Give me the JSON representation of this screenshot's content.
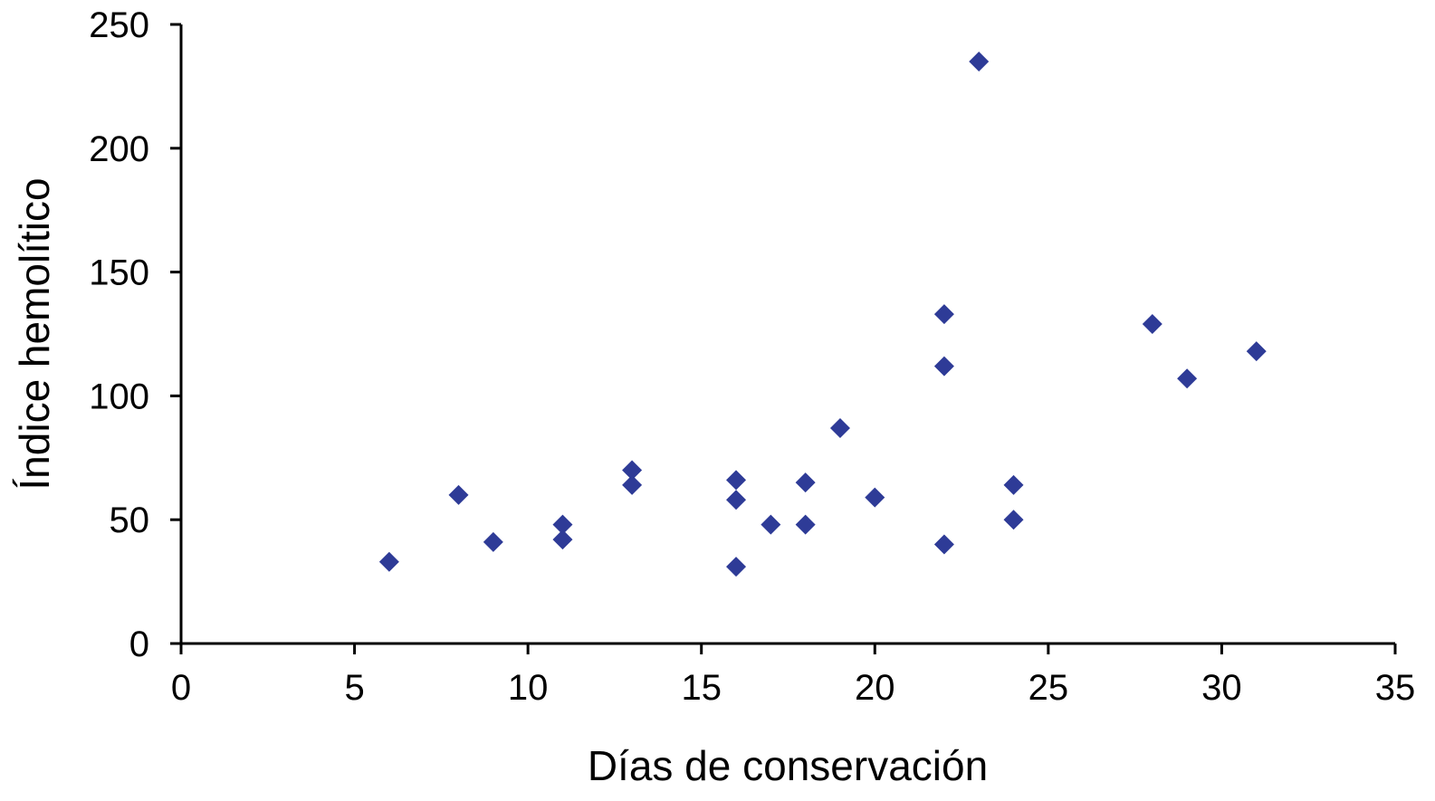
{
  "chart_data": {
    "type": "scatter",
    "title": "",
    "xlabel": "Días de conservación",
    "ylabel": "Índice hemolítico",
    "xlim": [
      0,
      35
    ],
    "ylim": [
      0,
      250
    ],
    "xticks": [
      0,
      5,
      10,
      15,
      20,
      25,
      30,
      35
    ],
    "yticks": [
      0,
      50,
      100,
      150,
      200,
      250
    ],
    "xtick_labels": [
      "0",
      "5",
      "10",
      "15",
      "20",
      "25",
      "30",
      "35"
    ],
    "ytick_labels": [
      "0",
      "50",
      "100",
      "150",
      "200",
      "250"
    ],
    "grid": false,
    "legend": "none",
    "marker": "diamond",
    "marker_color": "#2e3b97",
    "series": [
      {
        "points": [
          {
            "x": 6,
            "y": 33
          },
          {
            "x": 8,
            "y": 60
          },
          {
            "x": 9,
            "y": 41
          },
          {
            "x": 11,
            "y": 48
          },
          {
            "x": 11,
            "y": 42
          },
          {
            "x": 13,
            "y": 70
          },
          {
            "x": 13,
            "y": 64
          },
          {
            "x": 16,
            "y": 66
          },
          {
            "x": 16,
            "y": 58
          },
          {
            "x": 16,
            "y": 31
          },
          {
            "x": 17,
            "y": 48
          },
          {
            "x": 18,
            "y": 65
          },
          {
            "x": 18,
            "y": 48
          },
          {
            "x": 19,
            "y": 87
          },
          {
            "x": 20,
            "y": 59
          },
          {
            "x": 22,
            "y": 133
          },
          {
            "x": 22,
            "y": 112
          },
          {
            "x": 22,
            "y": 40
          },
          {
            "x": 23,
            "y": 235
          },
          {
            "x": 24,
            "y": 64
          },
          {
            "x": 24,
            "y": 50
          },
          {
            "x": 28,
            "y": 129
          },
          {
            "x": 29,
            "y": 107
          },
          {
            "x": 31,
            "y": 118
          }
        ]
      }
    ]
  }
}
